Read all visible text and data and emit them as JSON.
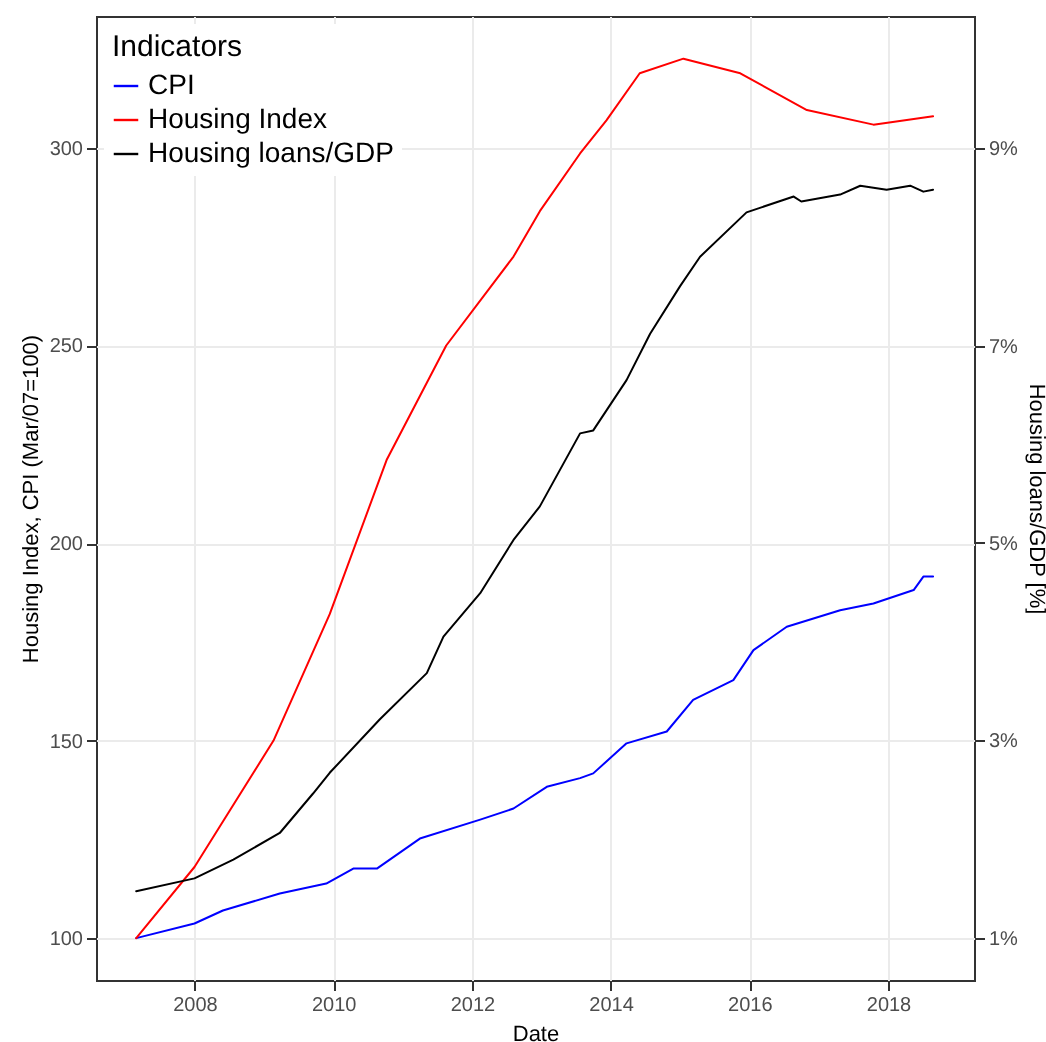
{
  "chart_data": {
    "type": "line",
    "xlabel": "Date",
    "ylabel": "Housing Index, CPI (Mar/07=100)",
    "y2label": "Housing loans/GDP [%]",
    "legend_title": "Indicators",
    "legend": "top left",
    "grid": true,
    "line_style": "solid",
    "xlim": [
      2006.58,
      2019.24
    ],
    "xticks": [
      2008,
      2010,
      2012,
      2014,
      2016,
      2018
    ],
    "ylim": [
      89.4,
      333.4
    ],
    "yticks": [
      100,
      150,
      200,
      250,
      300
    ],
    "y2lim": [
      0.57,
      10.34
    ],
    "y2ticks": [
      {
        "value": 1,
        "label": "1%"
      },
      {
        "value": 3,
        "label": "3%"
      },
      {
        "value": 5,
        "label": "5%"
      },
      {
        "value": 7,
        "label": "7%"
      },
      {
        "value": 9,
        "label": "9%"
      }
    ],
    "series": [
      {
        "name": "CPI",
        "color": "#0000ff",
        "x": [
          2007.16,
          2008.0,
          2008.41,
          2009.23,
          2009.9,
          2010.29,
          2010.63,
          2011.25,
          2012.12,
          2012.6,
          2013.08,
          2013.56,
          2013.75,
          2014.23,
          2014.81,
          2015.19,
          2015.77,
          2016.06,
          2016.54,
          2017.31,
          2017.79,
          2018.37,
          2018.51,
          2018.65
        ],
        "values": [
          100,
          103.7,
          107,
          111.3,
          113.8,
          117.6,
          117.6,
          125.2,
          130,
          132.8,
          138.3,
          140.5,
          141.7,
          149.3,
          152.3,
          160.3,
          165.3,
          172.9,
          178.8,
          183,
          184.7,
          188.1,
          191.5,
          191.5
        ]
      },
      {
        "name": "Housing Index",
        "color": "#ff0000",
        "x": [
          2007.16,
          2008.0,
          2009.14,
          2009.95,
          2010.77,
          2011.63,
          2012.6,
          2012.98,
          2013.56,
          2013.94,
          2014.42,
          2015.05,
          2015.87,
          2016.83,
          2017.79,
          2018.65
        ],
        "values": [
          100,
          118,
          150,
          182,
          221,
          250,
          272.5,
          284,
          298.6,
          307,
          318.9,
          322.6,
          318.9,
          309.6,
          305.9,
          308
        ]
      },
      {
        "name": "Housing loans/GDP",
        "color": "#000000",
        "axis": "y2",
        "x": [
          2007.16,
          2008.0,
          2008.56,
          2009.23,
          2009.71,
          2009.95,
          2010.67,
          2011.35,
          2011.59,
          2012.12,
          2012.6,
          2012.98,
          2013.56,
          2013.75,
          2014.23,
          2014.57,
          2015.0,
          2015.29,
          2015.96,
          2016.64,
          2016.75,
          2017.31,
          2017.6,
          2017.98,
          2018.32,
          2018.51,
          2018.65
        ],
        "values": [
          1.47,
          1.6,
          1.79,
          2.06,
          2.46,
          2.67,
          3.21,
          3.68,
          4.05,
          4.49,
          5.03,
          5.37,
          6.11,
          6.14,
          6.65,
          7.12,
          7.6,
          7.9,
          8.35,
          8.51,
          8.46,
          8.53,
          8.62,
          8.58,
          8.62,
          8.56,
          8.58
        ]
      }
    ]
  }
}
